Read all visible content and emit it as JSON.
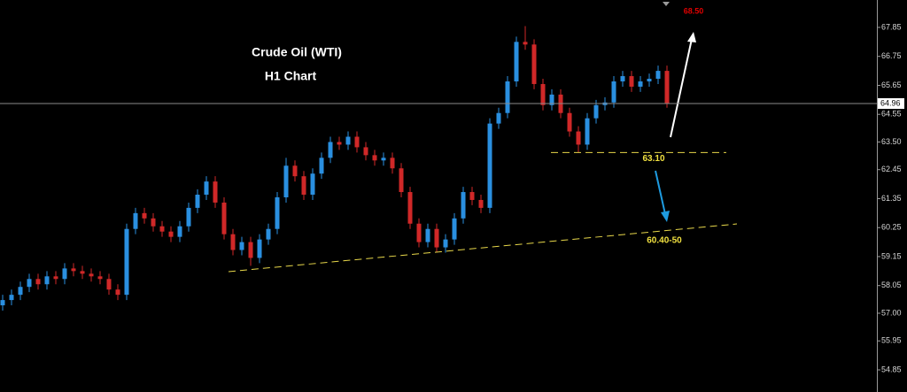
{
  "chart_data": {
    "type": "candlestick",
    "title": "Crude Oil (WTI)",
    "subtitle": "H1 Chart",
    "target_label": "68.50",
    "up_color": "#2a8fe0",
    "down_color": "#d02828",
    "ylim": [
      54.01,
      68.89
    ],
    "yticks": [
      67.85,
      66.75,
      65.65,
      64.55,
      {
        "value": 63.5,
        "label": "63.50"
      },
      62.45,
      61.35,
      60.25,
      59.15,
      58.05,
      {
        "value": 57,
        "label": "57.00"
      },
      55.95,
      54.85
    ],
    "current_price": 64.96,
    "support": {
      "value": 63.1,
      "label": "63.10",
      "x": [
        61.9,
        81.7
      ]
    },
    "trendline": {
      "x": [
        25.5,
        82.9
      ],
      "values": [
        58.58,
        60.39
      ],
      "label": "60.40-50"
    },
    "open": [
      57.3,
      57.5,
      57.7,
      58.0,
      58.3,
      58.1,
      58.4,
      58.3,
      58.7,
      58.6,
      58.5,
      58.4,
      58.3,
      57.9,
      57.7,
      60.2,
      60.8,
      60.6,
      60.3,
      60.1,
      59.9,
      60.3,
      61.0,
      61.5,
      62.0,
      61.2,
      60.0,
      59.4,
      59.7,
      59.1,
      59.8,
      60.2,
      61.4,
      62.6,
      62.2,
      61.5,
      62.3,
      62.9,
      63.5,
      63.4,
      63.7,
      63.3,
      63.0,
      62.8,
      62.9,
      62.5,
      61.6,
      60.4,
      59.7,
      60.2,
      59.5,
      59.8,
      60.6,
      61.6,
      61.3,
      61.0,
      64.2,
      64.6,
      65.8,
      67.3,
      67.2,
      65.7,
      64.9,
      65.3,
      64.6,
      63.9,
      63.4,
      64.4,
      64.9,
      65.0,
      65.8,
      66.0,
      65.6,
      65.8,
      65.9,
      66.2
    ],
    "high": [
      57.7,
      57.9,
      58.2,
      58.5,
      58.5,
      58.6,
      58.6,
      58.9,
      58.9,
      58.8,
      58.7,
      58.6,
      58.5,
      58.1,
      60.4,
      61.0,
      61.0,
      60.8,
      60.5,
      60.3,
      60.5,
      61.2,
      61.7,
      62.2,
      62.2,
      61.4,
      60.2,
      59.9,
      59.9,
      60.0,
      60.4,
      61.6,
      62.9,
      62.8,
      62.4,
      62.5,
      63.1,
      63.7,
      63.7,
      63.9,
      63.9,
      63.5,
      63.2,
      63.1,
      63.1,
      62.7,
      61.8,
      60.6,
      60.4,
      60.4,
      60.0,
      60.8,
      61.8,
      61.8,
      61.5,
      64.4,
      64.8,
      66.0,
      67.5,
      67.9,
      67.4,
      65.9,
      65.5,
      65.5,
      64.8,
      64.1,
      64.6,
      65.1,
      65.2,
      66.0,
      66.2,
      66.2,
      66.0,
      66.1,
      66.4,
      66.4
    ],
    "low": [
      57.1,
      57.3,
      57.5,
      57.8,
      57.9,
      57.9,
      58.1,
      58.1,
      58.4,
      58.3,
      58.2,
      58.1,
      57.7,
      57.5,
      57.5,
      60.0,
      60.4,
      60.1,
      59.9,
      59.7,
      59.7,
      60.1,
      60.8,
      61.3,
      61.0,
      59.8,
      59.2,
      59.2,
      58.8,
      58.9,
      59.6,
      60.0,
      61.2,
      62.0,
      61.3,
      61.3,
      62.1,
      62.7,
      63.2,
      63.2,
      63.1,
      62.8,
      62.6,
      62.6,
      62.3,
      61.4,
      60.2,
      59.5,
      59.5,
      59.3,
      59.3,
      59.6,
      60.4,
      61.1,
      60.8,
      60.8,
      64.0,
      64.4,
      65.6,
      67.0,
      65.5,
      64.7,
      64.7,
      64.4,
      63.7,
      63.1,
      63.2,
      64.2,
      64.7,
      64.8,
      65.6,
      65.4,
      65.4,
      65.6,
      65.7,
      64.8
    ],
    "close": [
      57.5,
      57.7,
      58.0,
      58.3,
      58.1,
      58.4,
      58.3,
      58.7,
      58.6,
      58.5,
      58.4,
      58.3,
      57.9,
      57.7,
      60.2,
      60.8,
      60.6,
      60.3,
      60.1,
      59.9,
      60.3,
      61.0,
      61.5,
      62.0,
      61.2,
      60.0,
      59.4,
      59.7,
      59.1,
      59.8,
      60.2,
      61.4,
      62.6,
      62.2,
      61.5,
      62.3,
      62.9,
      63.5,
      63.4,
      63.7,
      63.3,
      63.0,
      62.8,
      62.9,
      62.5,
      61.6,
      60.4,
      59.7,
      60.2,
      59.5,
      59.8,
      60.6,
      61.6,
      61.3,
      61.0,
      64.2,
      64.6,
      65.8,
      67.3,
      67.2,
      65.7,
      64.9,
      65.3,
      64.6,
      63.9,
      63.4,
      64.4,
      64.9,
      65.0,
      65.8,
      66.0,
      65.6,
      65.8,
      65.9,
      66.2,
      64.96
    ]
  }
}
